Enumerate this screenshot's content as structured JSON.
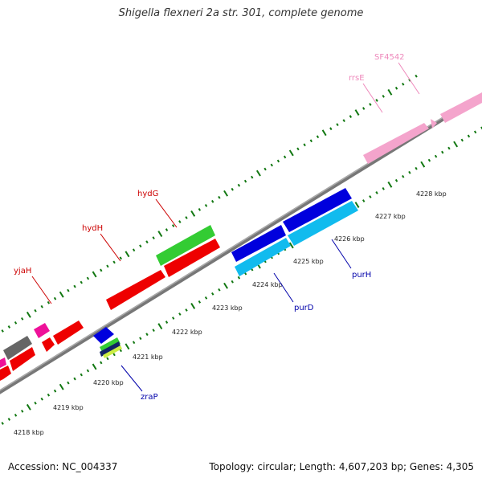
{
  "title": "Shigella flexneri 2a str. 301, complete genome",
  "accession": "Accession: NC_004337",
  "summary": "Topology: circular; Length: 4,607,203 bp; Genes: 4,305",
  "ticks": [
    "4218 kbp",
    "4219 kbp",
    "4220 kbp",
    "4221 kbp",
    "4222 kbp",
    "4223 kbp",
    "4224 kbp",
    "4225 kbp",
    "4226 kbp",
    "4227 kbp",
    "4228 kbp"
  ],
  "labels": {
    "upper": [
      {
        "name": "yjaH",
        "color": "#cc0000"
      },
      {
        "name": "hydH",
        "color": "#cc0000"
      },
      {
        "name": "hydG",
        "color": "#cc0000"
      },
      {
        "name": "rrsE",
        "color": "#ee88bb"
      },
      {
        "name": "SF4542",
        "color": "#ee88bb"
      }
    ],
    "lower": [
      {
        "name": "zraP",
        "color": "#0000aa"
      },
      {
        "name": "purD",
        "color": "#0000aa"
      },
      {
        "name": "purH",
        "color": "#0000aa"
      }
    ]
  },
  "colors": {
    "red_gene": "#ee0000",
    "green_gene": "#33cc33",
    "blue_gene": "#0000dd",
    "cyan_gene": "#11bbee",
    "pink_gene": "#f4a4cc",
    "magenta_gene": "#ee1199",
    "gray_gene": "#666666",
    "backbone": "#888888",
    "tick_dot": "#117711"
  },
  "legend": []
}
